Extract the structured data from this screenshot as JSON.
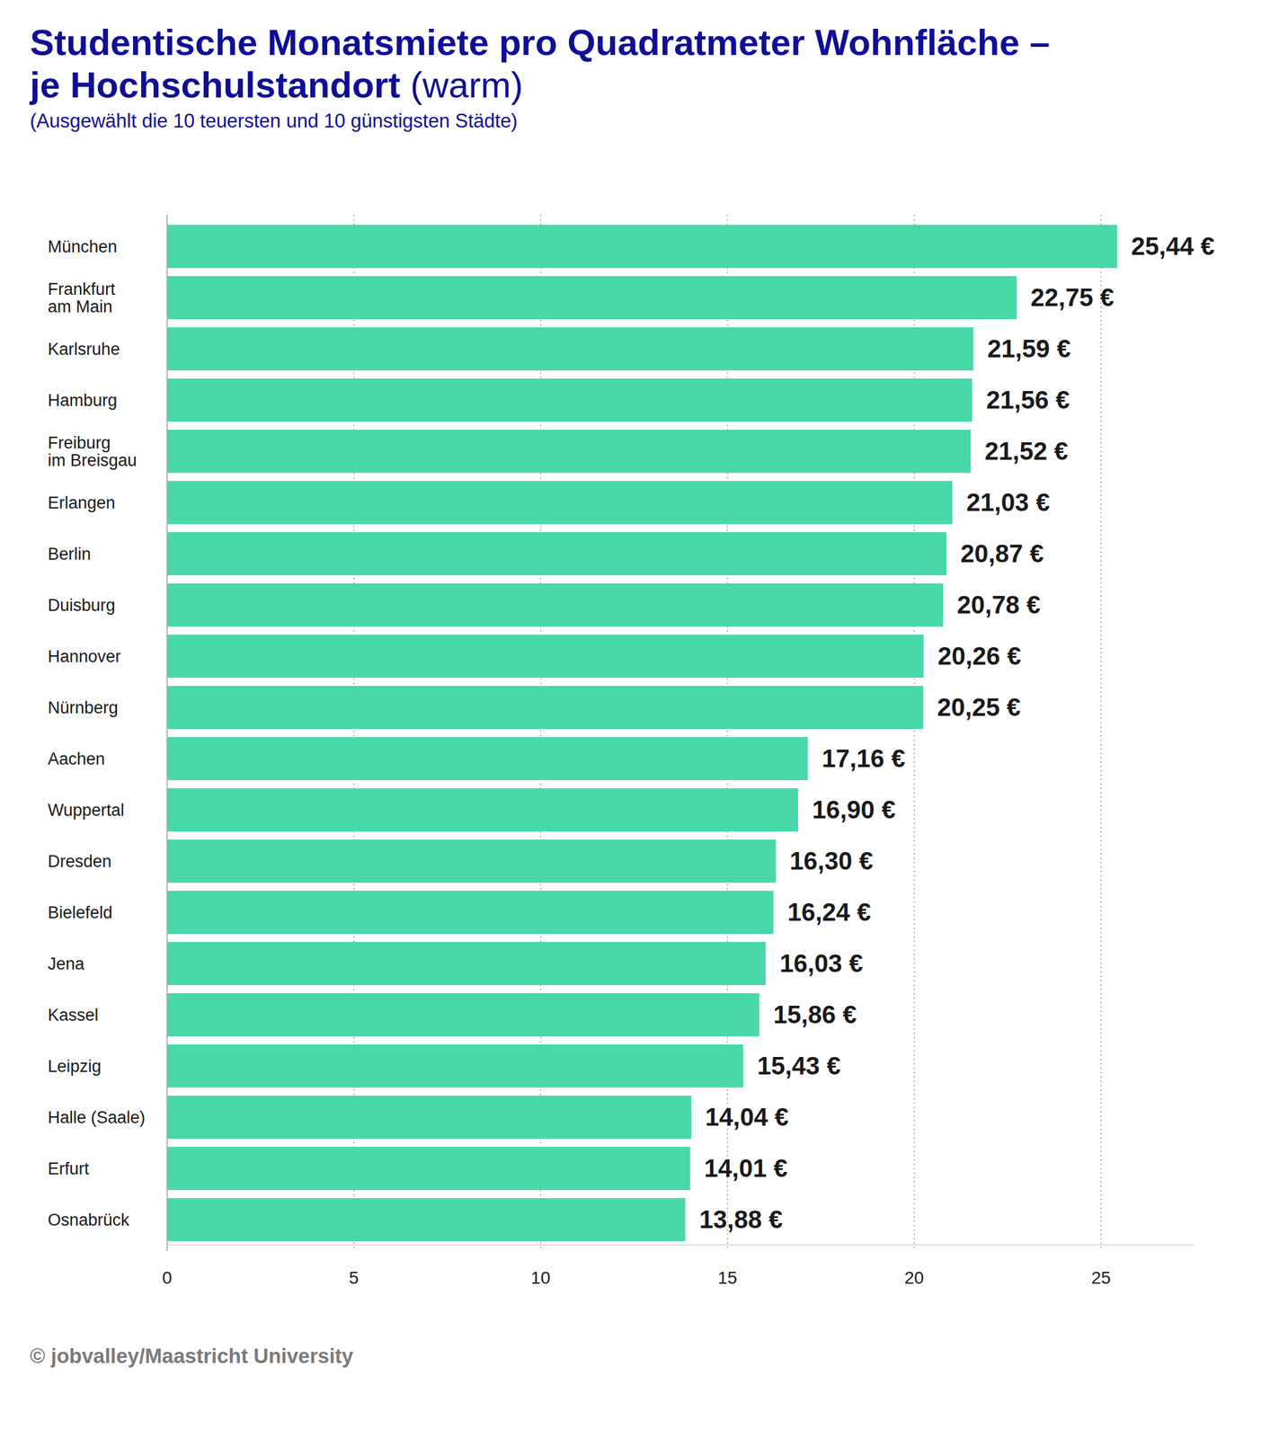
{
  "chart_data": {
    "type": "bar",
    "orientation": "horizontal",
    "title": "Studentische Monatsmiete pro Quadratmeter Wohnfläche –\nje Hochschulstandort (warm)",
    "subtitle": "(Ausgewählt die 10 teuersten und 10 günstigsten Städte)",
    "caption": "© jobvalley/Maastricht University",
    "categories": [
      "München",
      "Frankfurt\nam Main",
      "Karlsruhe",
      "Hamburg",
      "Freiburg\nim Breisgau",
      "Erlangen",
      "Berlin",
      "Duisburg",
      "Hannover",
      "Nürnberg",
      "Aachen",
      "Wuppertal",
      "Dresden",
      "Bielefeld",
      "Jena",
      "Kassel",
      "Leipzig",
      "Halle (Saale)",
      "Erfurt",
      "Osnabrück"
    ],
    "values": [
      25.44,
      22.75,
      21.59,
      21.56,
      21.52,
      21.03,
      20.87,
      20.78,
      20.26,
      20.25,
      17.16,
      16.9,
      16.3,
      16.24,
      16.03,
      15.86,
      15.43,
      14.04,
      14.01,
      13.88
    ],
    "value_labels": [
      "25,44 €",
      "22,75 €",
      "21,59 €",
      "21,56 €",
      "21,52 €",
      "21,03 €",
      "20,87 €",
      "20,78 €",
      "20,26 €",
      "20,25 €",
      "17,16 €",
      "16,90 €",
      "16,30 €",
      "16,24 €",
      "16,03 €",
      "15,86 €",
      "15,43 €",
      "14,04 €",
      "14,01 €",
      "13,88 €"
    ],
    "data_labels": true,
    "color": "#48d8aa",
    "xlim": [
      0,
      27.5
    ],
    "xticks": [
      0,
      5,
      10,
      15,
      20,
      25
    ],
    "grid": true
  }
}
